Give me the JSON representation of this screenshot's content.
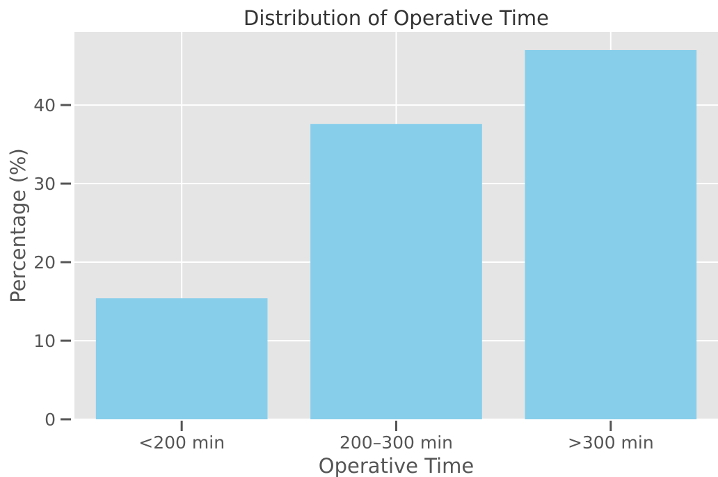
{
  "chart_data": {
    "type": "bar",
    "title": "Distribution of Operative Time",
    "xlabel": "Operative Time",
    "ylabel": "Percentage (%)",
    "categories": [
      "<200 min",
      "200–300 min",
      ">300 min"
    ],
    "values": [
      15.4,
      37.6,
      47.0
    ],
    "ylim": [
      0,
      49.3
    ],
    "yticks": [
      0,
      10,
      20,
      30,
      40
    ],
    "grid": true,
    "colors": {
      "bar": "#87CEEB",
      "plot_background": "#E5E5E5",
      "grid": "#FFFFFF",
      "tick": "#555555"
    }
  }
}
